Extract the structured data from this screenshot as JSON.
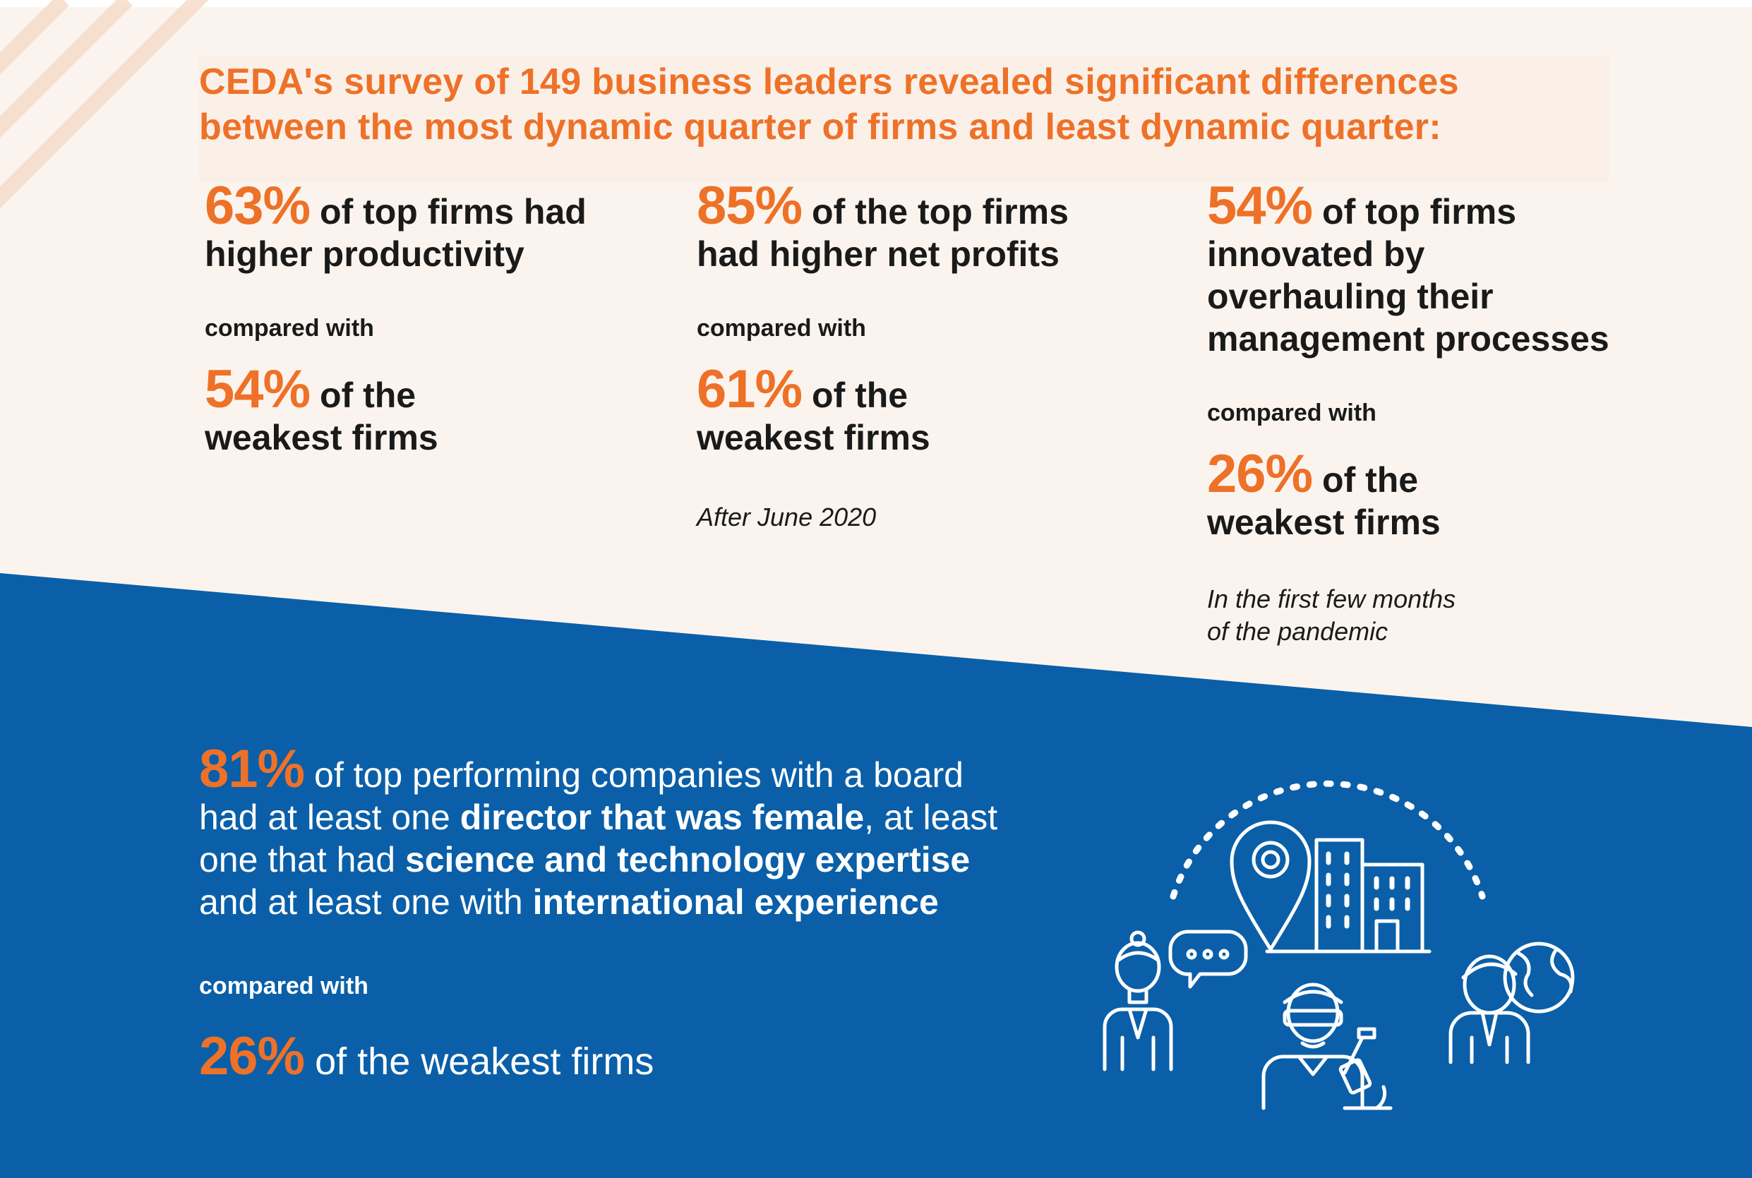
{
  "colors": {
    "accent": "#ee7128",
    "blue": "#0a5fa8",
    "cream": "#fbf4ee",
    "text": "#1a1a1a"
  },
  "headline": {
    "line1": "CEDA's survey of 149 business leaders revealed significant differences",
    "line2": "between the most dynamic quarter of firms and least dynamic quarter:"
  },
  "stats": [
    {
      "top_pct": "63%",
      "top_text_1": "of top firms had",
      "top_text_2": "higher productivity",
      "compared": "compared with",
      "weak_pct": "54%",
      "weak_text_1": "of the",
      "weak_text_2": "weakest firms"
    },
    {
      "top_pct": "85%",
      "top_text_1": "of the top firms",
      "top_text_2": "had higher net profits",
      "compared": "compared with",
      "weak_pct": "61%",
      "weak_text_1": "of the",
      "weak_text_2": "weakest firms",
      "note": "After June 2020"
    },
    {
      "top_pct": "54%",
      "top_text_1": "of top firms",
      "top_text_2": "innovated by",
      "top_text_3": "overhauling their",
      "top_text_4": "management processes",
      "compared": "compared with",
      "weak_pct": "26%",
      "weak_text_1": "of the",
      "weak_text_2": "weakest firms",
      "note_1": "In the first few months",
      "note_2": "of the pandemic"
    }
  ],
  "board": {
    "pct": "81%",
    "t1": "of top performing companies with a board",
    "t2": "had at least one",
    "b1": "director that was female",
    "t3": ", at least",
    "t4": "one that had",
    "b2": "science and technology expertise",
    "t5": "and at least one with",
    "b3": "international experience",
    "compared": "compared with",
    "weak_pct": "26%",
    "weak_text": "of the weakest firms"
  },
  "icons": [
    "location-pin-icon",
    "office-building-icon",
    "businesswoman-icon",
    "speech-bubble-icon",
    "scientist-icon",
    "microscope-icon",
    "businessman-icon",
    "globe-icon"
  ]
}
